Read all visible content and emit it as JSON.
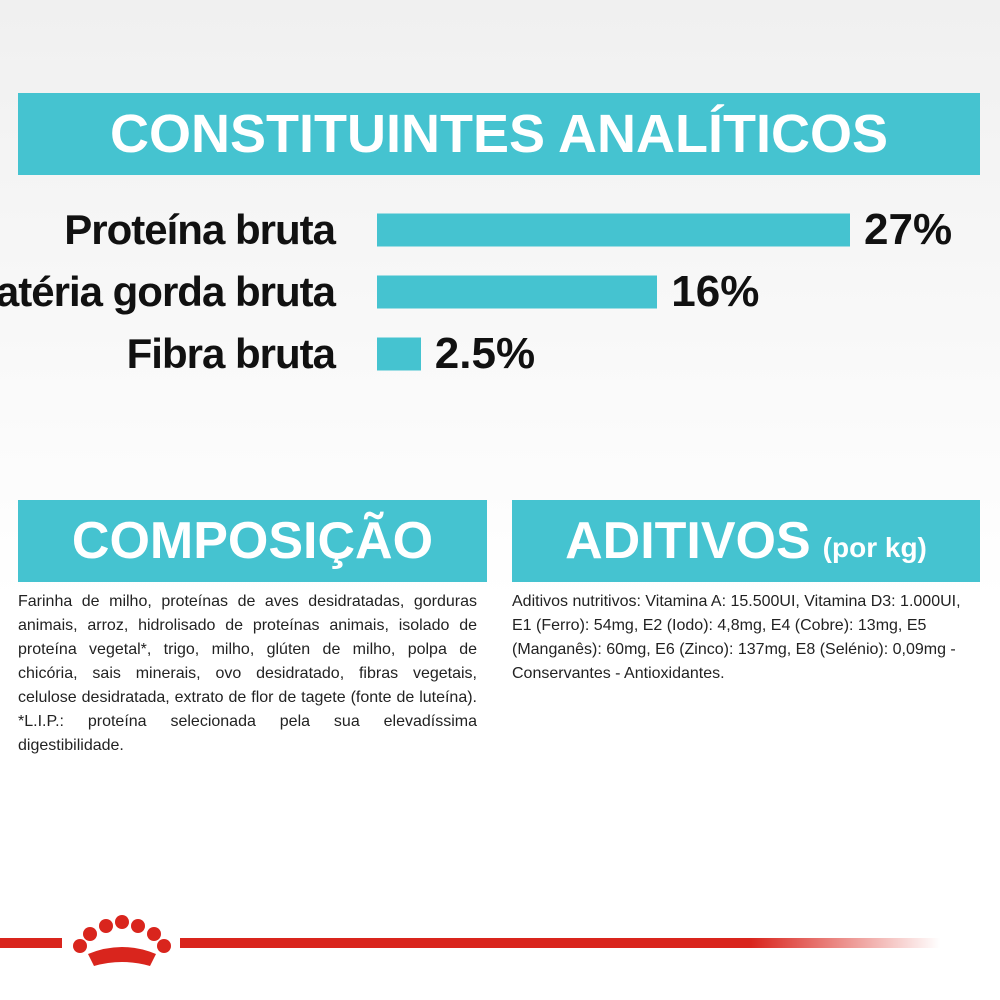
{
  "chart_data": {
    "type": "bar",
    "orientation": "horizontal",
    "title": "CONSTITUINTES ANALÍTICOS",
    "categories": [
      "Proteína bruta",
      "Matéria gorda bruta",
      "Fibra bruta"
    ],
    "values": [
      27,
      16,
      2.5
    ],
    "value_labels": [
      "27%",
      "16%",
      "2.5%"
    ],
    "color": "#45c3d0"
  },
  "composition": {
    "title": "COMPOSIÇÃO",
    "text": "Farinha de milho, proteínas de aves desidratadas, gorduras animais, arroz, hidrolisado de proteínas animais, isolado de proteína vegetal*, trigo, milho, glúten de milho, polpa de chicória, sais minerais, ovo desidratado, fibras vegetais, celulose desidratada, extrato de flor de tagete (fonte de luteína). *L.I.P.: proteína selecionada pela sua elevadíssima digestibilidade."
  },
  "additives": {
    "title": "ADITIVOS",
    "subtitle": "(por kg)",
    "text": "Aditivos nutritivos: Vitamina A: 15.500UI, Vitamina D3: 1.000UI, E1 (Ferro): 54mg, E2 (Iodo): 4,8mg, E4 (Cobre): 13mg, E5 (Manganês): 60mg, E6 (Zinco): 137mg, E8 (Selénio): 0,09mg - Conservantes - Antioxidantes."
  }
}
